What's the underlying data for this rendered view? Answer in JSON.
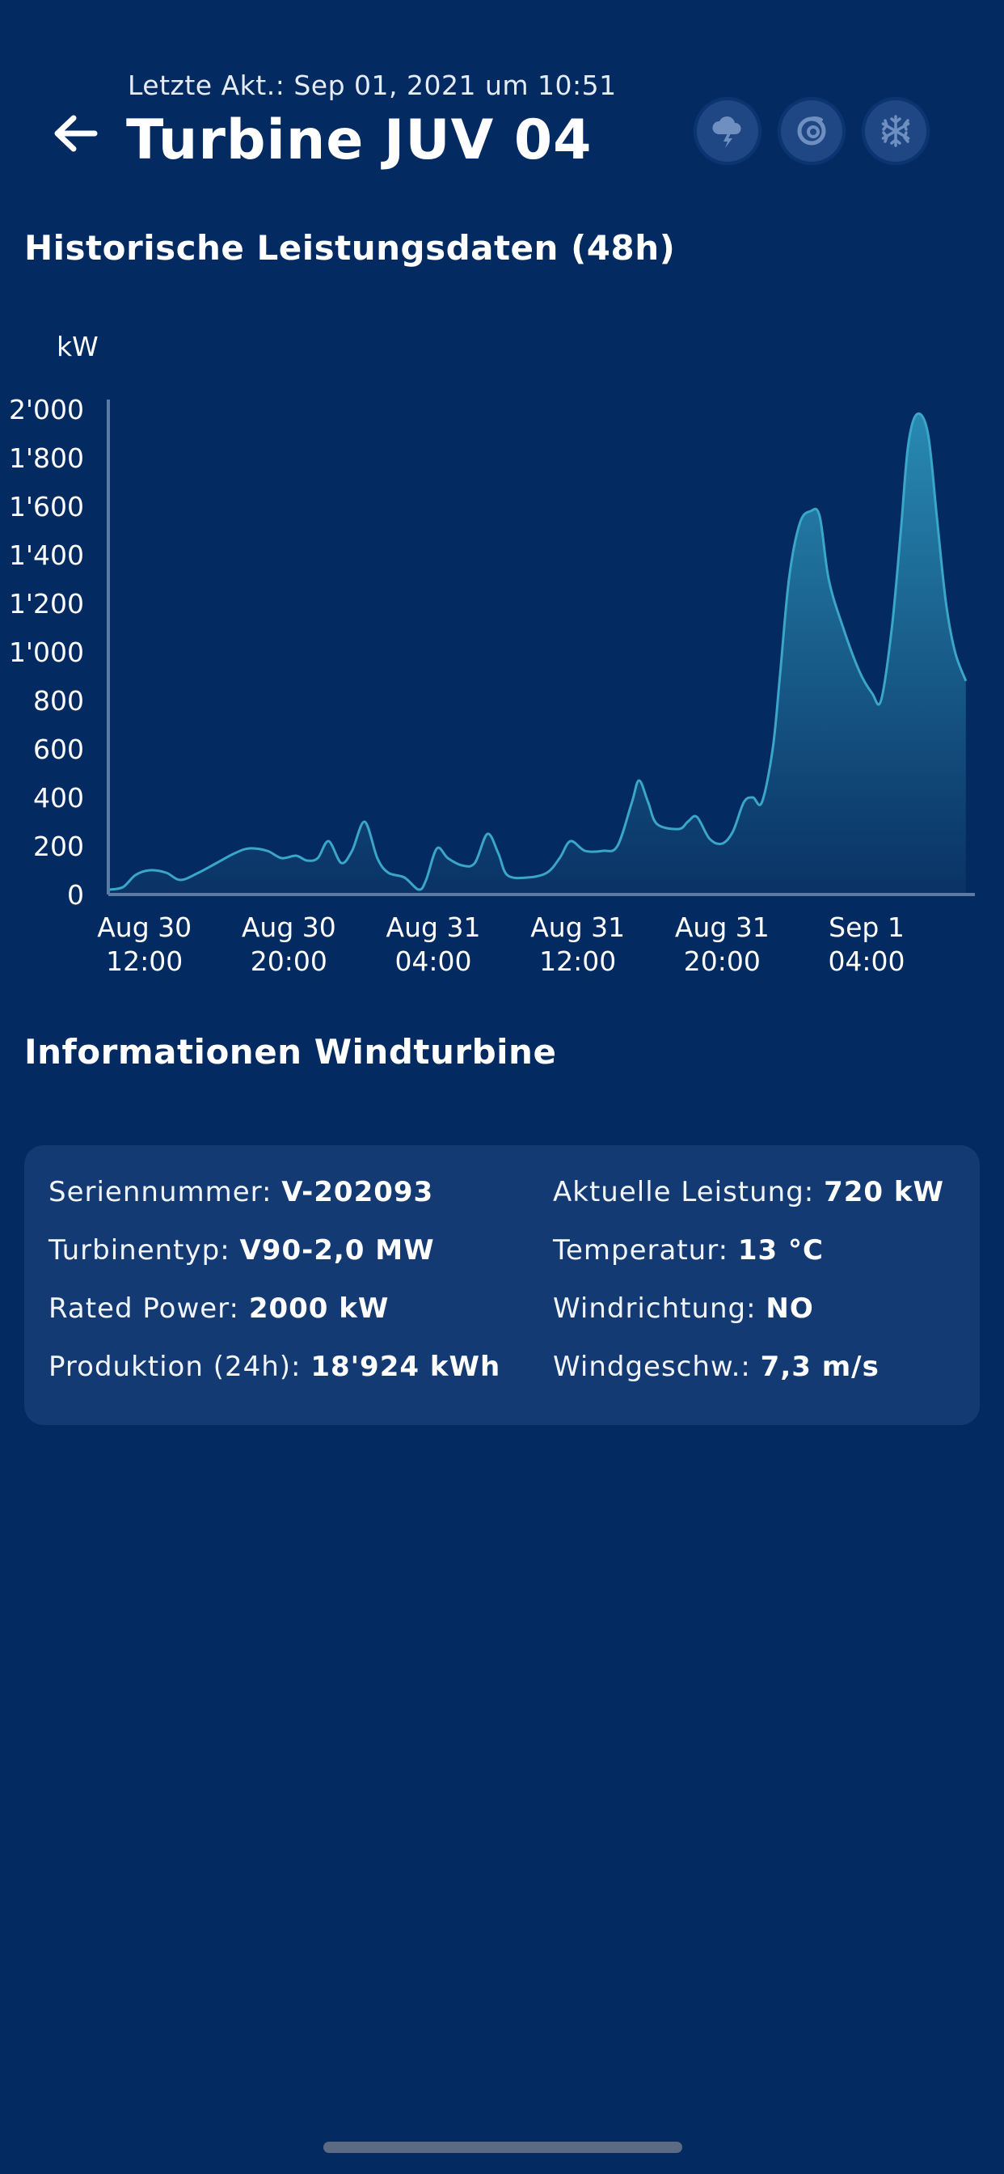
{
  "header": {
    "last_update": "Letzte Akt.: Sep 01, 2021 um 10:51",
    "title": "Turbine JUV 04",
    "status_icons": [
      "thunderstorm-icon",
      "hurricane-icon",
      "snowflake-icon"
    ]
  },
  "chart_section": {
    "title": "Historische Leistungsdaten (48h)"
  },
  "chart_data": {
    "type": "area",
    "title": "Historische Leistungsdaten (48h)",
    "ylabel": "kW",
    "xlabel": "",
    "ylim": [
      0,
      2000
    ],
    "yticks": [
      "0",
      "200",
      "400",
      "600",
      "800",
      "1'000",
      "1'200",
      "1'400",
      "1'600",
      "1'800",
      "2'000"
    ],
    "xticks": [
      {
        "x": 2,
        "line1": "Aug 30",
        "line2": "12:00"
      },
      {
        "x": 10,
        "line1": "Aug 30",
        "line2": "20:00"
      },
      {
        "x": 18,
        "line1": "Aug 31",
        "line2": "04:00"
      },
      {
        "x": 26,
        "line1": "Aug 31",
        "line2": "12:00"
      },
      {
        "x": 34,
        "line1": "Aug 31",
        "line2": "20:00"
      },
      {
        "x": 42,
        "line1": "Sep 1",
        "line2": "04:00"
      }
    ],
    "xlim": [
      0,
      48
    ],
    "series": [
      {
        "values": [
          [
            0.0,
            20
          ],
          [
            0.8,
            30
          ],
          [
            1.5,
            80
          ],
          [
            2.3,
            100
          ],
          [
            3.2,
            90
          ],
          [
            4.0,
            60
          ],
          [
            5.0,
            90
          ],
          [
            6.0,
            130
          ],
          [
            7.0,
            170
          ],
          [
            7.8,
            190
          ],
          [
            8.8,
            180
          ],
          [
            9.6,
            150
          ],
          [
            10.4,
            160
          ],
          [
            11.0,
            140
          ],
          [
            11.6,
            150
          ],
          [
            12.2,
            220
          ],
          [
            12.9,
            130
          ],
          [
            13.5,
            180
          ],
          [
            14.2,
            300
          ],
          [
            14.9,
            150
          ],
          [
            15.5,
            90
          ],
          [
            16.4,
            70
          ],
          [
            17.2,
            20
          ],
          [
            17.6,
            60
          ],
          [
            18.2,
            190
          ],
          [
            18.8,
            150
          ],
          [
            19.6,
            120
          ],
          [
            20.3,
            130
          ],
          [
            21.0,
            250
          ],
          [
            21.6,
            170
          ],
          [
            22.1,
            80
          ],
          [
            23.2,
            70
          ],
          [
            24.3,
            90
          ],
          [
            25.0,
            150
          ],
          [
            25.6,
            220
          ],
          [
            26.4,
            180
          ],
          [
            27.4,
            180
          ],
          [
            28.2,
            200
          ],
          [
            29.0,
            380
          ],
          [
            29.4,
            470
          ],
          [
            29.9,
            380
          ],
          [
            30.4,
            290
          ],
          [
            31.6,
            270
          ],
          [
            32.1,
            300
          ],
          [
            32.6,
            320
          ],
          [
            33.3,
            230
          ],
          [
            34.0,
            210
          ],
          [
            34.6,
            260
          ],
          [
            35.2,
            380
          ],
          [
            35.7,
            400
          ],
          [
            36.2,
            380
          ],
          [
            36.8,
            600
          ],
          [
            37.2,
            900
          ],
          [
            37.7,
            1300
          ],
          [
            38.3,
            1530
          ],
          [
            38.9,
            1580
          ],
          [
            39.4,
            1560
          ],
          [
            39.9,
            1300
          ],
          [
            40.7,
            1100
          ],
          [
            41.6,
            920
          ],
          [
            42.3,
            830
          ],
          [
            42.8,
            800
          ],
          [
            43.4,
            1100
          ],
          [
            43.9,
            1500
          ],
          [
            44.3,
            1850
          ],
          [
            44.8,
            1980
          ],
          [
            45.4,
            1900
          ],
          [
            45.9,
            1550
          ],
          [
            46.4,
            1200
          ],
          [
            46.9,
            1000
          ],
          [
            47.5,
            880
          ]
        ]
      }
    ],
    "colors": {
      "line": "#3aa6c9",
      "fill_top": "#2a8fb6",
      "fill_bottom": "#0a3366",
      "axis": "#5b7aa6"
    },
    "grid": false,
    "legend": "none"
  },
  "info_section": {
    "title": "Informationen Windturbine",
    "items": [
      {
        "label": "Seriennummer: ",
        "value": "V-202093"
      },
      {
        "label": "Turbinentyp: ",
        "value": "V90-2,0 MW"
      },
      {
        "label": "Rated Power: ",
        "value": "2000 kW"
      },
      {
        "label": "Produktion (24h): ",
        "value": "18'924 kWh"
      },
      {
        "label": "Aktuelle Leistung: ",
        "value": "720 kW"
      },
      {
        "label": "Temperatur: ",
        "value": "13 °C"
      },
      {
        "label": "Windrichtung: ",
        "value": "NO"
      },
      {
        "label": "Windgeschw.: ",
        "value": "7,3 m/s"
      }
    ]
  }
}
